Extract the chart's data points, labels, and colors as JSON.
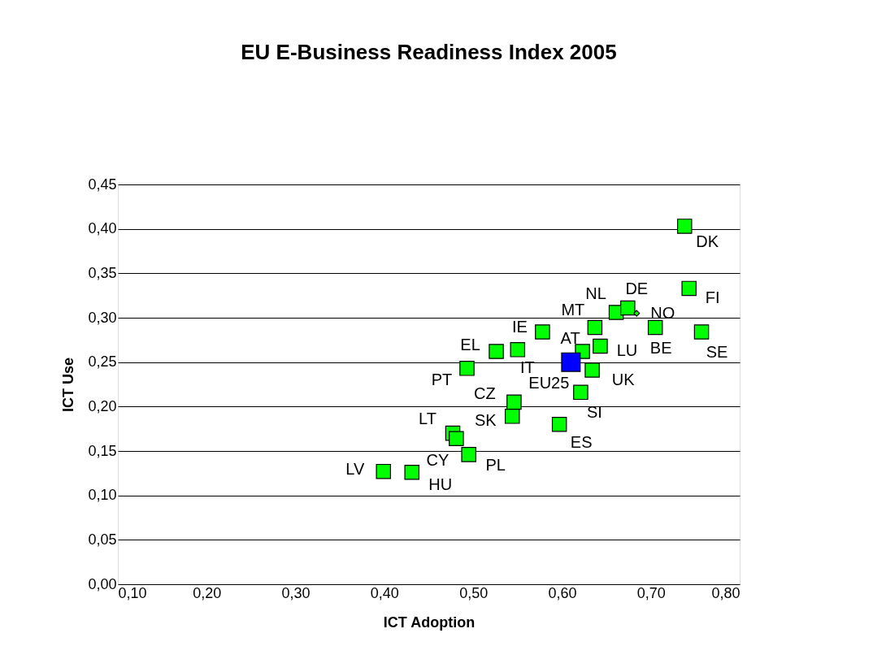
{
  "chart_data": {
    "type": "scatter",
    "title": "EU E-Business Readiness Index 2005",
    "xlabel": "ICT Adoption",
    "ylabel": "ICT Use",
    "xlim": [
      0.1,
      0.8
    ],
    "ylim": [
      0,
      0.45
    ],
    "xticks": [
      {
        "value": 0.1,
        "label": "0,10"
      },
      {
        "value": 0.2,
        "label": "0,20"
      },
      {
        "value": 0.3,
        "label": "0,30"
      },
      {
        "value": 0.4,
        "label": "0,40"
      },
      {
        "value": 0.5,
        "label": "0,50"
      },
      {
        "value": 0.6,
        "label": "0,60"
      },
      {
        "value": 0.7,
        "label": "0,70"
      },
      {
        "value": 0.8,
        "label": "0,80"
      }
    ],
    "yticks": [
      {
        "value": 0,
        "label": "0,00"
      },
      {
        "value": 0.05,
        "label": "0,05"
      },
      {
        "value": 0.1,
        "label": "0,10"
      },
      {
        "value": 0.15,
        "label": "0,15"
      },
      {
        "value": 0.2,
        "label": "0,20"
      },
      {
        "value": 0.25,
        "label": "0,25"
      },
      {
        "value": 0.3,
        "label": "0,30"
      },
      {
        "value": 0.35,
        "label": "0,35"
      },
      {
        "value": 0.4,
        "label": "0,40"
      },
      {
        "value": 0.45,
        "label": "0,45"
      }
    ],
    "grid": "y",
    "legend": false,
    "marker": "square",
    "series": [
      {
        "color": "#00ff00",
        "x": [
          0.738,
          0.743,
          0.661,
          0.674,
          0.637,
          0.705,
          0.757,
          0.578,
          0.643,
          0.623,
          0.526,
          0.55,
          0.634,
          0.621,
          0.546,
          0.544,
          0.493,
          0.597,
          0.477,
          0.481,
          0.495,
          0.399,
          0.431
        ],
        "values": [
          0.403,
          0.333,
          0.306,
          0.311,
          0.289,
          0.289,
          0.284,
          0.284,
          0.268,
          0.262,
          0.262,
          0.264,
          0.241,
          0.216,
          0.205,
          0.189,
          0.243,
          0.18,
          0.17,
          0.164,
          0.146,
          0.127,
          0.126
        ]
      },
      {
        "color": "#0000ff",
        "x": [
          0.61
        ],
        "values": [
          0.25
        ]
      },
      {
        "color": "#00ff00",
        "marker": "diamond",
        "x": [
          0.684
        ],
        "values": [
          0.305
        ]
      }
    ],
    "annotations": [
      {
        "text": "DK",
        "x": 0.738,
        "y": 0.403
      },
      {
        "text": "FI",
        "x": 0.743,
        "y": 0.333
      },
      {
        "text": "NL",
        "x": 0.661,
        "y": 0.306
      },
      {
        "text": "DE",
        "x": 0.674,
        "y": 0.311
      },
      {
        "text": "NO",
        "x": 0.684,
        "y": 0.305
      },
      {
        "text": "MT",
        "x": 0.637,
        "y": 0.289
      },
      {
        "text": "BE",
        "x": 0.705,
        "y": 0.289
      },
      {
        "text": "SE",
        "x": 0.757,
        "y": 0.284
      },
      {
        "text": "IE",
        "x": 0.578,
        "y": 0.284
      },
      {
        "text": "LU",
        "x": 0.643,
        "y": 0.268
      },
      {
        "text": "AT",
        "x": 0.623,
        "y": 0.262
      },
      {
        "text": "EL",
        "x": 0.526,
        "y": 0.262
      },
      {
        "text": "IT",
        "x": 0.55,
        "y": 0.264
      },
      {
        "text": "EU25",
        "x": 0.61,
        "y": 0.25
      },
      {
        "text": "UK",
        "x": 0.634,
        "y": 0.241
      },
      {
        "text": "SI",
        "x": 0.621,
        "y": 0.216
      },
      {
        "text": "CZ",
        "x": 0.546,
        "y": 0.205
      },
      {
        "text": "SK",
        "x": 0.544,
        "y": 0.189
      },
      {
        "text": "PT",
        "x": 0.493,
        "y": 0.243
      },
      {
        "text": "ES",
        "x": 0.597,
        "y": 0.18
      },
      {
        "text": "LT",
        "x": 0.477,
        "y": 0.17
      },
      {
        "text": "CY",
        "x": 0.481,
        "y": 0.164
      },
      {
        "text": "PL",
        "x": 0.495,
        "y": 0.146
      },
      {
        "text": "LV",
        "x": 0.399,
        "y": 0.127
      },
      {
        "text": "HU",
        "x": 0.431,
        "y": 0.126
      }
    ]
  }
}
